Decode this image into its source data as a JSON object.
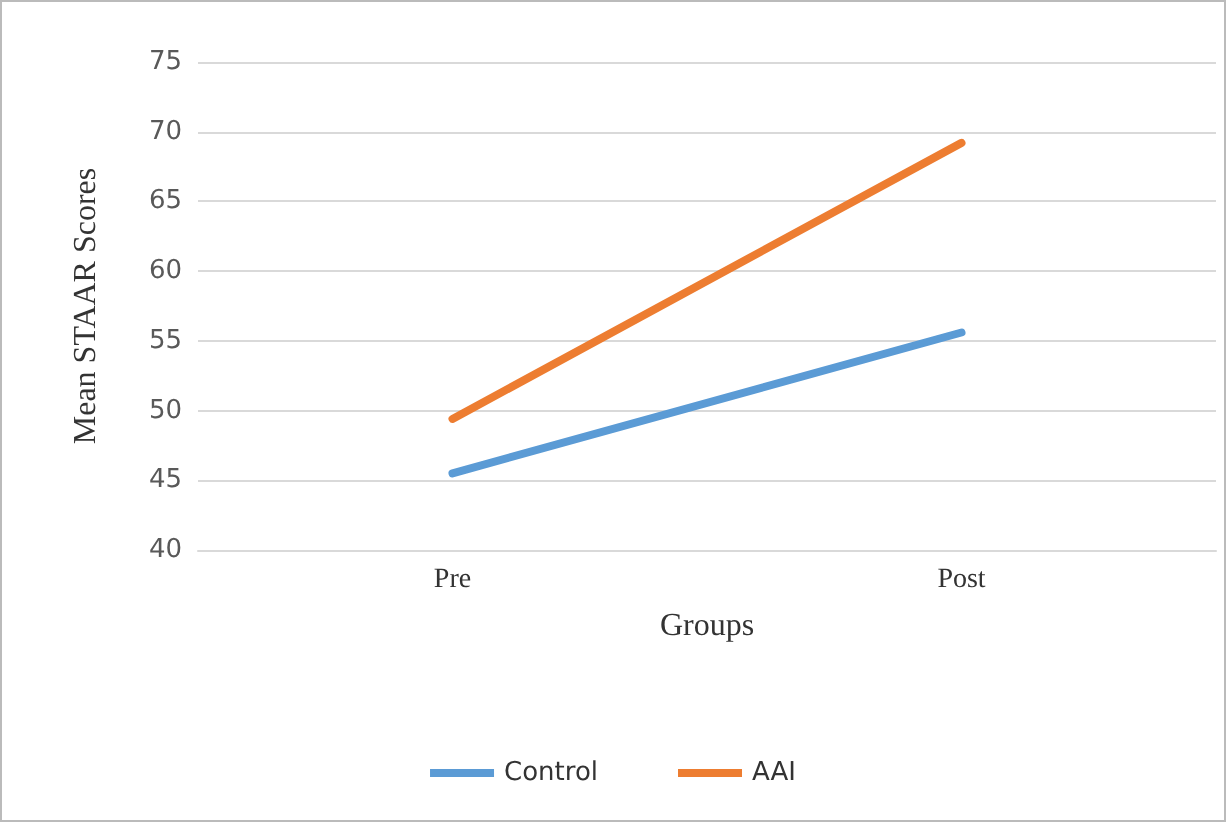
{
  "chart_data": {
    "type": "line",
    "xlabel": "Groups",
    "ylabel": "Mean STAAR Scores",
    "categories": [
      "Pre",
      "Post"
    ],
    "series": [
      {
        "name": "Control",
        "color": "#5b9bd5",
        "values": [
          45.5,
          55.6
        ]
      },
      {
        "name": "AAI",
        "color": "#ed7d31",
        "values": [
          49.4,
          69.2
        ]
      }
    ],
    "ylim": [
      40,
      75
    ],
    "yticks": [
      40,
      45,
      50,
      55,
      60,
      65,
      70,
      75
    ],
    "grid": "y",
    "legend": "bottom",
    "marker": "none",
    "line_style": "solid"
  }
}
